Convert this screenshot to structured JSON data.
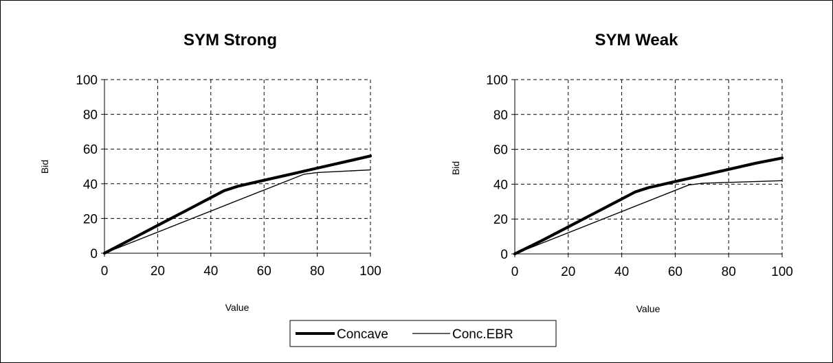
{
  "chart_data": [
    {
      "type": "line",
      "title": "SYM Strong",
      "xlabel": "Value",
      "ylabel": "Bid",
      "xlim": [
        0,
        100
      ],
      "ylim": [
        0,
        100
      ],
      "xticks": [
        0,
        20,
        40,
        60,
        80,
        100
      ],
      "yticks": [
        0,
        20,
        40,
        60,
        80,
        100
      ],
      "grid": true,
      "series": [
        {
          "name": "Concave",
          "x": [
            0,
            10,
            20,
            30,
            40,
            45,
            50,
            60,
            70,
            80,
            90,
            100
          ],
          "y": [
            0,
            8,
            16,
            24,
            32,
            36,
            38.5,
            42,
            45.5,
            49,
            52.5,
            56
          ]
        },
        {
          "name": "Conc.EBR",
          "x": [
            0,
            75,
            80,
            100
          ],
          "y": [
            0,
            45.5,
            46.5,
            48
          ]
        }
      ]
    },
    {
      "type": "line",
      "title": "SYM Weak",
      "xlabel": "Value",
      "ylabel": "Bid",
      "xlim": [
        0,
        100
      ],
      "ylim": [
        0,
        100
      ],
      "xticks": [
        0,
        20,
        40,
        60,
        80,
        100
      ],
      "yticks": [
        0,
        20,
        40,
        60,
        80,
        100
      ],
      "grid": true,
      "series": [
        {
          "name": "Concave",
          "x": [
            0,
            10,
            20,
            30,
            40,
            45,
            50,
            60,
            70,
            80,
            90,
            100
          ],
          "y": [
            0,
            7.5,
            15.5,
            23.5,
            31.5,
            35.5,
            38,
            41.5,
            45,
            48.5,
            52,
            55
          ]
        },
        {
          "name": "Conc.EBR",
          "x": [
            0,
            65,
            70,
            100
          ],
          "y": [
            0,
            39.5,
            40.5,
            42
          ]
        }
      ]
    }
  ],
  "legend": {
    "placement": "bottom-center",
    "items": [
      "Concave",
      "Conc.EBR"
    ]
  },
  "colors": {
    "line": "#000000",
    "grid": "#000000",
    "background": "#ffffff"
  }
}
